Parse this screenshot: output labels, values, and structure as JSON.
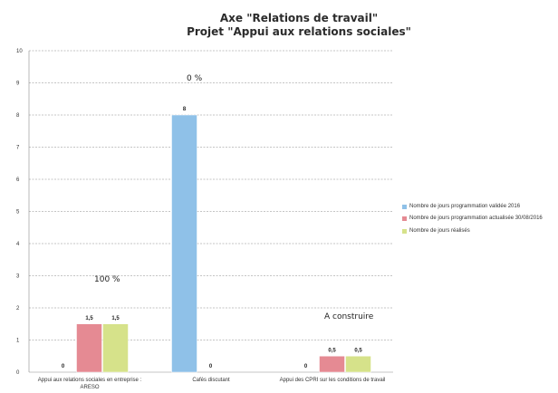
{
  "chart_data": {
    "type": "bar",
    "title": "Axe \"Relations de travail\"",
    "subtitle": "Projet \"Appui aux relations sociales\"",
    "categories": [
      "Appui aux relations sociales en entreprise : ARESO",
      "Cafés discutant",
      "Appui des CPRI sur les conditions de travail"
    ],
    "category_labels": [
      [
        "Appui aux relations sociales en entreprise :",
        "ARESO"
      ],
      [
        "Cafés discutant"
      ],
      [
        "Appui des CPRI sur les conditions de travail"
      ]
    ],
    "series": [
      {
        "name": "Nombre de jours programmation validée 2016",
        "values": [
          0,
          8,
          0
        ],
        "value_labels": [
          "0",
          "8",
          "0"
        ],
        "color": "#8fc1e8"
      },
      {
        "name": "Nombre de jours programmation actualisée 30/08/2016",
        "values": [
          1.5,
          0,
          0.5
        ],
        "value_labels": [
          "1,5",
          "0",
          "0,5"
        ],
        "color": "#e58a93"
      },
      {
        "name": "Nombre de jours réalisés",
        "values": [
          1.5,
          0,
          0.5
        ],
        "value_labels": [
          "1,5",
          "",
          "0,5"
        ],
        "color": "#d6e28a"
      }
    ],
    "yticks": [
      "0",
      "1",
      "2",
      "3",
      "4",
      "5",
      "6",
      "7",
      "8",
      "9",
      "10"
    ],
    "ylim": [
      0,
      10
    ],
    "grid": true,
    "legend_position": "right",
    "annotations": [
      "100 %",
      "0 %",
      "A construire"
    ]
  }
}
